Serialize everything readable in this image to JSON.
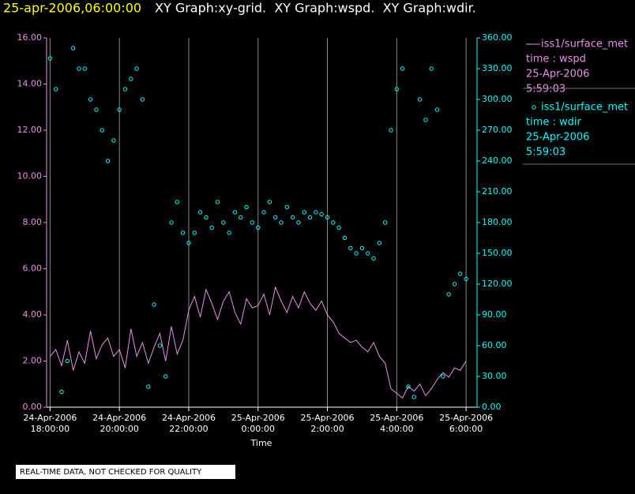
{
  "chart_data": {
    "type": "xy",
    "timestamp": "25-apr-2006,06:00:00",
    "title": "XY Graph:xy-grid.  XY Graph:wspd.  XY Graph:wdir.",
    "xlabel": "Time",
    "note": "REAL-TIME DATA, NOT CHECKED FOR QUALITY",
    "grid": true,
    "xlim": [
      "2006-04-24T17:54",
      "2006-04-25T06:19"
    ],
    "xticks": [
      {
        "value": "2006-04-24T18:00",
        "label": [
          "24-Apr-2006",
          "18:00:00"
        ]
      },
      {
        "value": "2006-04-24T20:00",
        "label": [
          "24-Apr-2006",
          "20:00:00"
        ]
      },
      {
        "value": "2006-04-24T22:00",
        "label": [
          "24-Apr-2006",
          "22:00:00"
        ]
      },
      {
        "value": "2006-04-25T00:00",
        "label": [
          "25-Apr-2006",
          "0:00:00"
        ]
      },
      {
        "value": "2006-04-25T02:00",
        "label": [
          "25-Apr-2006",
          "2:00:00"
        ]
      },
      {
        "value": "2006-04-25T04:00",
        "label": [
          "25-Apr-2006",
          "4:00:00"
        ]
      },
      {
        "value": "2006-04-25T06:00",
        "label": [
          "25-Apr-2006",
          "6:00:00"
        ]
      }
    ],
    "ylim": [
      0,
      16
    ],
    "yticks": [
      {
        "value": 0,
        "label": "0.00"
      },
      {
        "value": 2,
        "label": "2.00"
      },
      {
        "value": 4,
        "label": "4.00"
      },
      {
        "value": 6,
        "label": "6.00"
      },
      {
        "value": 8,
        "label": "8.00"
      },
      {
        "value": 10,
        "label": "10.00"
      },
      {
        "value": 12,
        "label": "12.00"
      },
      {
        "value": 14,
        "label": "14.00"
      },
      {
        "value": 16,
        "label": "16.00"
      }
    ],
    "y2lim": [
      0,
      360
    ],
    "y2ticks": [
      {
        "value": 0,
        "label": "0.00"
      },
      {
        "value": 30,
        "label": "30.00"
      },
      {
        "value": 60,
        "label": "60.00"
      },
      {
        "value": 90,
        "label": "90.00"
      },
      {
        "value": 120,
        "label": "120.00"
      },
      {
        "value": 150,
        "label": "150.00"
      },
      {
        "value": 180,
        "label": "180.00"
      },
      {
        "value": 210,
        "label": "210.00"
      },
      {
        "value": 240,
        "label": "240.00"
      },
      {
        "value": 270,
        "label": "270.00"
      },
      {
        "value": 300,
        "label": "300.00"
      },
      {
        "value": 330,
        "label": "330.00"
      },
      {
        "value": 360,
        "label": "360.00"
      }
    ],
    "x": [
      "2006-04-24T18:00",
      "2006-04-24T18:10",
      "2006-04-24T18:20",
      "2006-04-24T18:30",
      "2006-04-24T18:40",
      "2006-04-24T18:50",
      "2006-04-24T19:00",
      "2006-04-24T19:10",
      "2006-04-24T19:20",
      "2006-04-24T19:30",
      "2006-04-24T19:40",
      "2006-04-24T19:50",
      "2006-04-24T20:00",
      "2006-04-24T20:10",
      "2006-04-24T20:20",
      "2006-04-24T20:30",
      "2006-04-24T20:40",
      "2006-04-24T20:50",
      "2006-04-24T21:00",
      "2006-04-24T21:10",
      "2006-04-24T21:20",
      "2006-04-24T21:30",
      "2006-04-24T21:40",
      "2006-04-24T21:50",
      "2006-04-24T22:00",
      "2006-04-24T22:10",
      "2006-04-24T22:20",
      "2006-04-24T22:30",
      "2006-04-24T22:40",
      "2006-04-24T22:50",
      "2006-04-24T23:00",
      "2006-04-24T23:10",
      "2006-04-24T23:20",
      "2006-04-24T23:30",
      "2006-04-24T23:40",
      "2006-04-24T23:50",
      "2006-04-25T00:00",
      "2006-04-25T00:10",
      "2006-04-25T00:20",
      "2006-04-25T00:30",
      "2006-04-25T00:40",
      "2006-04-25T00:50",
      "2006-04-25T01:00",
      "2006-04-25T01:10",
      "2006-04-25T01:20",
      "2006-04-25T01:30",
      "2006-04-25T01:40",
      "2006-04-25T01:50",
      "2006-04-25T02:00",
      "2006-04-25T02:10",
      "2006-04-25T02:20",
      "2006-04-25T02:30",
      "2006-04-25T02:40",
      "2006-04-25T02:50",
      "2006-04-25T03:00",
      "2006-04-25T03:10",
      "2006-04-25T03:20",
      "2006-04-25T03:30",
      "2006-04-25T03:40",
      "2006-04-25T03:50",
      "2006-04-25T04:00",
      "2006-04-25T04:10",
      "2006-04-25T04:20",
      "2006-04-25T04:30",
      "2006-04-25T04:40",
      "2006-04-25T04:50",
      "2006-04-25T05:00",
      "2006-04-25T05:10",
      "2006-04-25T05:20",
      "2006-04-25T05:30",
      "2006-04-25T05:40",
      "2006-04-25T05:50",
      "2006-04-25T06:00"
    ],
    "series": [
      {
        "name": "iss1/surface_met",
        "field": "time : wspd",
        "date": "25-Apr-2006",
        "time": "5:59:03",
        "color": "#e890e8",
        "style": "line",
        "axis": "y",
        "values": [
          2.2,
          2.5,
          1.8,
          2.9,
          1.6,
          2.4,
          1.9,
          3.3,
          2.1,
          2.7,
          3.0,
          2.2,
          2.5,
          1.7,
          3.4,
          2.2,
          2.8,
          1.9,
          2.6,
          3.2,
          2.0,
          3.5,
          2.3,
          2.9,
          4.2,
          4.8,
          3.9,
          5.1,
          4.5,
          3.8,
          4.6,
          5.0,
          4.1,
          3.6,
          4.7,
          4.3,
          4.4,
          4.9,
          4.0,
          5.2,
          4.6,
          4.1,
          4.8,
          4.3,
          5.0,
          4.5,
          4.2,
          4.6,
          4.0,
          3.7,
          3.2,
          3.0,
          2.8,
          2.9,
          2.6,
          2.4,
          2.8,
          2.2,
          1.9,
          0.8,
          0.6,
          0.4,
          0.9,
          0.7,
          1.0,
          0.5,
          0.8,
          1.2,
          1.5,
          1.3,
          1.7,
          1.6,
          2.0
        ]
      },
      {
        "name": "iss1/surface_met",
        "field": "time : wdir",
        "date": "25-Apr-2006",
        "time": "5:59:03",
        "color": "#00ffff",
        "style": "scatter",
        "axis": "y2",
        "values": [
          340,
          310,
          15,
          45,
          350,
          330,
          330,
          300,
          290,
          270,
          240,
          260,
          290,
          310,
          320,
          330,
          300,
          20,
          100,
          60,
          30,
          180,
          200,
          170,
          160,
          170,
          190,
          185,
          175,
          200,
          180,
          170,
          190,
          185,
          195,
          180,
          175,
          190,
          200,
          185,
          180,
          195,
          185,
          180,
          190,
          185,
          190,
          188,
          185,
          180,
          175,
          165,
          155,
          150,
          155,
          150,
          145,
          160,
          180,
          270,
          310,
          330,
          20,
          10,
          300,
          280,
          330,
          290,
          30,
          110,
          120,
          130,
          125
        ]
      }
    ]
  }
}
